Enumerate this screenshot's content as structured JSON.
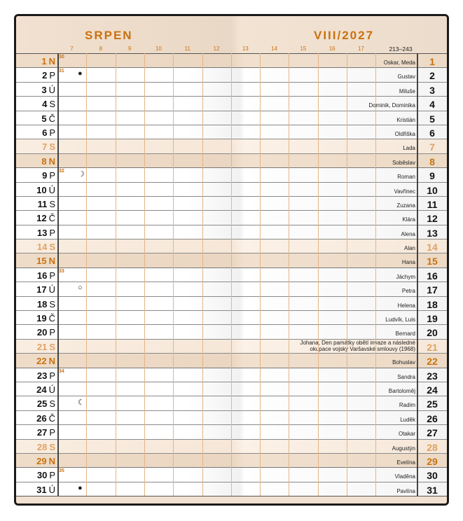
{
  "header": {
    "month": "SRPEN",
    "period": "VIII/2027",
    "day_range": "213–243",
    "hours": [
      "7",
      "8",
      "9",
      "10",
      "11",
      "12",
      "13",
      "14",
      "15",
      "16",
      "17"
    ]
  },
  "colors": {
    "accent": "#c8720f",
    "saturday": "#e0a263",
    "sunday_bg": "#efdcc8",
    "saturday_bg": "#f9ede1"
  },
  "days": [
    {
      "day": "1",
      "weekday": "N",
      "type": "sun",
      "week": "30",
      "moon": "",
      "name": "Oskar, Meda"
    },
    {
      "day": "2",
      "weekday": "P",
      "type": "work",
      "week": "31",
      "moon": "new-moon-icon",
      "name": "Gustav"
    },
    {
      "day": "3",
      "weekday": "Ú",
      "type": "work",
      "week": "",
      "moon": "",
      "name": "Miluše"
    },
    {
      "day": "4",
      "weekday": "S",
      "type": "work",
      "week": "",
      "moon": "",
      "name": "Dominik, Dominika"
    },
    {
      "day": "5",
      "weekday": "Č",
      "type": "work",
      "week": "",
      "moon": "",
      "name": "Kristián"
    },
    {
      "day": "6",
      "weekday": "P",
      "type": "work",
      "week": "",
      "moon": "",
      "name": "Oldřiška"
    },
    {
      "day": "7",
      "weekday": "S",
      "type": "sat",
      "week": "",
      "moon": "",
      "name": "Lada"
    },
    {
      "day": "8",
      "weekday": "N",
      "type": "sun",
      "week": "",
      "moon": "",
      "name": "Soběslav"
    },
    {
      "day": "9",
      "weekday": "P",
      "type": "work",
      "week": "32",
      "moon": "first-quarter-icon",
      "name": "Roman"
    },
    {
      "day": "10",
      "weekday": "Ú",
      "type": "work",
      "week": "",
      "moon": "",
      "name": "Vavřinec"
    },
    {
      "day": "11",
      "weekday": "S",
      "type": "work",
      "week": "",
      "moon": "",
      "name": "Zuzana"
    },
    {
      "day": "12",
      "weekday": "Č",
      "type": "work",
      "week": "",
      "moon": "",
      "name": "Klára"
    },
    {
      "day": "13",
      "weekday": "P",
      "type": "work",
      "week": "",
      "moon": "",
      "name": "Alena"
    },
    {
      "day": "14",
      "weekday": "S",
      "type": "sat",
      "week": "",
      "moon": "",
      "name": "Alan"
    },
    {
      "day": "15",
      "weekday": "N",
      "type": "sun",
      "week": "",
      "moon": "",
      "name": "Hana"
    },
    {
      "day": "16",
      "weekday": "P",
      "type": "work",
      "week": "33",
      "moon": "",
      "name": "Jáchym"
    },
    {
      "day": "17",
      "weekday": "Ú",
      "type": "work",
      "week": "",
      "moon": "full-moon-icon",
      "name": "Petra"
    },
    {
      "day": "18",
      "weekday": "S",
      "type": "work",
      "week": "",
      "moon": "",
      "name": "Helena"
    },
    {
      "day": "19",
      "weekday": "Č",
      "type": "work",
      "week": "",
      "moon": "",
      "name": "Ludvík, Luis"
    },
    {
      "day": "20",
      "weekday": "P",
      "type": "work",
      "week": "",
      "moon": "",
      "name": "Bernard"
    },
    {
      "day": "21",
      "weekday": "S",
      "type": "sat",
      "week": "",
      "moon": "",
      "name": "Johana, Den památky obětí invaze a následné",
      "name2": "okupace vojsky Varšavské smlouvy (1968)"
    },
    {
      "day": "22",
      "weekday": "N",
      "type": "sun",
      "week": "",
      "moon": "",
      "name": "Bohuslav"
    },
    {
      "day": "23",
      "weekday": "P",
      "type": "work",
      "week": "34",
      "moon": "",
      "name": "Sandra"
    },
    {
      "day": "24",
      "weekday": "Ú",
      "type": "work",
      "week": "",
      "moon": "",
      "name": "Bartoloměj"
    },
    {
      "day": "25",
      "weekday": "S",
      "type": "work",
      "week": "",
      "moon": "last-quarter-icon",
      "name": "Radim"
    },
    {
      "day": "26",
      "weekday": "Č",
      "type": "work",
      "week": "",
      "moon": "",
      "name": "Luděk"
    },
    {
      "day": "27",
      "weekday": "P",
      "type": "work",
      "week": "",
      "moon": "",
      "name": "Otakar"
    },
    {
      "day": "28",
      "weekday": "S",
      "type": "sat",
      "week": "",
      "moon": "",
      "name": "Augustýn"
    },
    {
      "day": "29",
      "weekday": "N",
      "type": "sun",
      "week": "",
      "moon": "",
      "name": "Evelína"
    },
    {
      "day": "30",
      "weekday": "P",
      "type": "work",
      "week": "35",
      "moon": "",
      "name": "Vladěna"
    },
    {
      "day": "31",
      "weekday": "Ú",
      "type": "work",
      "week": "",
      "moon": "new-moon-icon",
      "name": "Pavlína"
    }
  ]
}
